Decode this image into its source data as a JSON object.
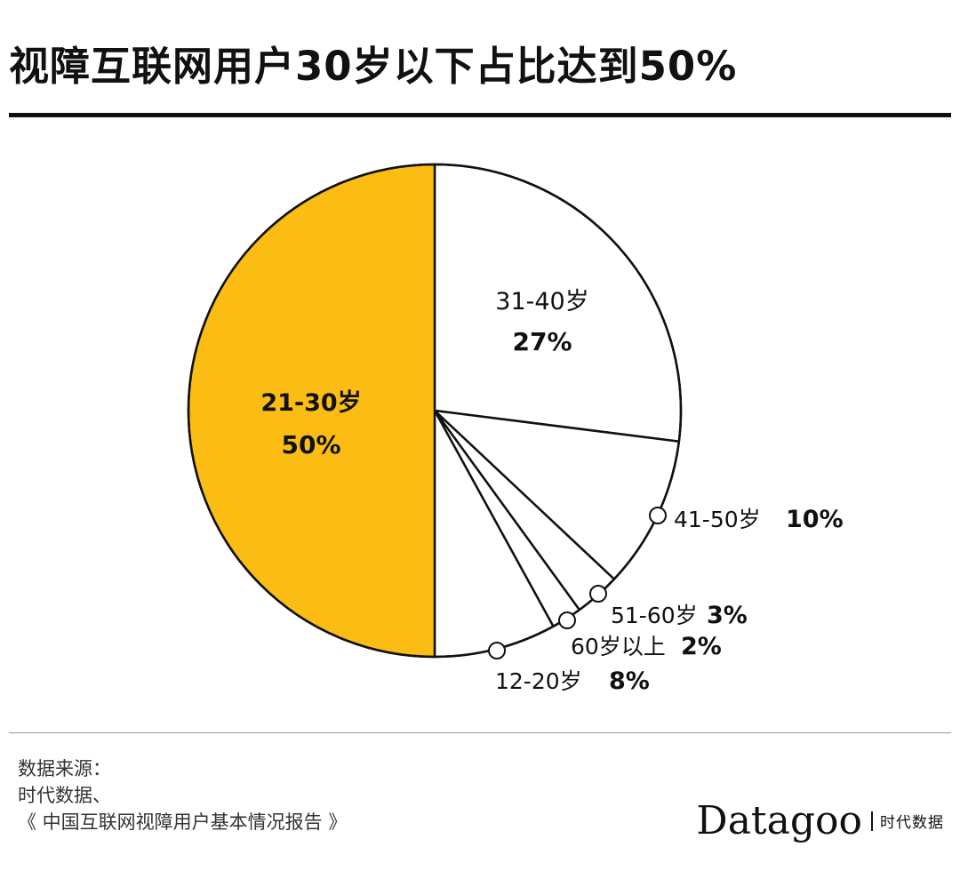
{
  "title": "视障互联网用户30岁以下占比达到50%",
  "chart_data": {
    "type": "pie",
    "start_angle_deg": 0,
    "direction": "clockwise",
    "slices": [
      {
        "label": "31-40岁",
        "value_label": "27%",
        "value": 27,
        "color": "#ffffff"
      },
      {
        "label": "41-50岁",
        "value_label": "10%",
        "value": 10,
        "color": "#ffffff"
      },
      {
        "label": "51-60岁",
        "value_label": "3%",
        "value": 3,
        "color": "#ffffff"
      },
      {
        "label": "60岁以上",
        "value_label": "2%",
        "value": 2,
        "color": "#ffffff"
      },
      {
        "label": "12-20岁",
        "value_label": "8%",
        "value": 8,
        "color": "#ffffff"
      },
      {
        "label": "21-30岁",
        "value_label": "50%",
        "value": 50,
        "color": "#fbbd14"
      }
    ]
  },
  "footer": {
    "source_lines": [
      "数据来源：",
      "时代数据、",
      "《 中国互联网视障用户基本情况报告 》"
    ],
    "brand_name": "Datagoo",
    "brand_sub": "时代数据"
  }
}
